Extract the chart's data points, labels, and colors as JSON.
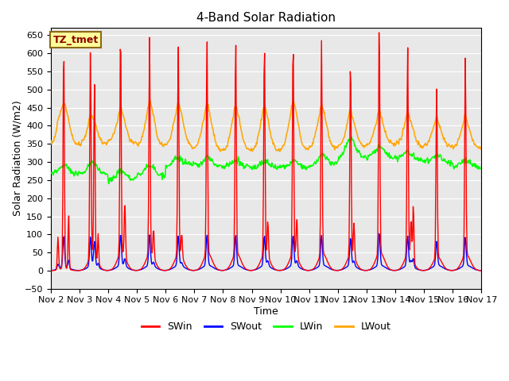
{
  "title": "4-Band Solar Radiation",
  "xlabel": "Time",
  "ylabel": "Solar Radiation (W/m2)",
  "ylim": [
    -50,
    670
  ],
  "xlim": [
    0,
    15
  ],
  "yticks": [
    -50,
    0,
    50,
    100,
    150,
    200,
    250,
    300,
    350,
    400,
    450,
    500,
    550,
    600,
    650
  ],
  "xtick_labels": [
    "Nov 2",
    "Nov 3",
    "Nov 4",
    "Nov 5",
    "Nov 6",
    "Nov 7",
    "Nov 8",
    "Nov 9",
    "Nov 10",
    "Nov 11",
    "Nov 12",
    "Nov 13",
    "Nov 14",
    "Nov 15",
    "Nov 16",
    "Nov 17"
  ],
  "annotation_text": "TZ_tmet",
  "annotation_box_color": "#FFFF99",
  "annotation_text_color": "#8B0000",
  "annotation_border_color": "#8B6914",
  "plot_bg_color": "#E8E8E8",
  "grid_color": "#FFFFFF",
  "colors": {
    "SWin": "#FF0000",
    "SWout": "#0000FF",
    "LWin": "#00FF00",
    "LWout": "#FFA500"
  },
  "title_fontsize": 11,
  "axis_label_fontsize": 9,
  "tick_fontsize": 8,
  "legend_fontsize": 9
}
